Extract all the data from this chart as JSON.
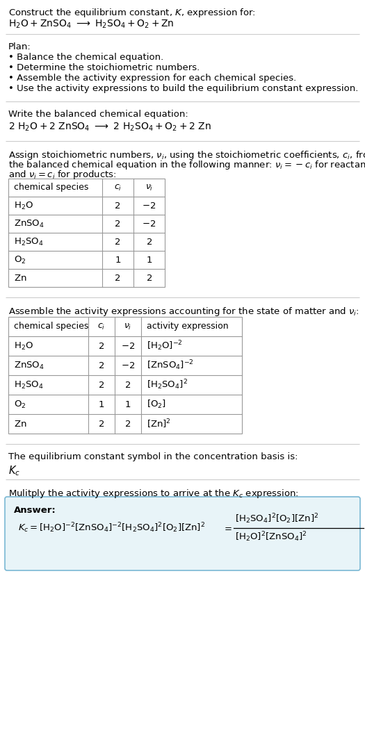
{
  "bg_color": "#ffffff",
  "text_color": "#000000",
  "font_size": 9.5,
  "separator_color": "#cccccc",
  "answer_box_color": "#e8f4f8",
  "answer_box_border": "#7ab8d4",
  "table1_species": [
    "H_2O",
    "ZnSO_4",
    "H_2SO_4",
    "O_2",
    "Zn"
  ],
  "table1_ci": [
    "2",
    "2",
    "2",
    "1",
    "2"
  ],
  "table1_vi": [
    "-2",
    "-2",
    "2",
    "1",
    "2"
  ],
  "table2_activity": [
    "[H2O]^{-2}",
    "[ZnSO4]^{-2}",
    "[H2SO4]^{2}",
    "[O2]",
    "[Zn]^{2}"
  ]
}
